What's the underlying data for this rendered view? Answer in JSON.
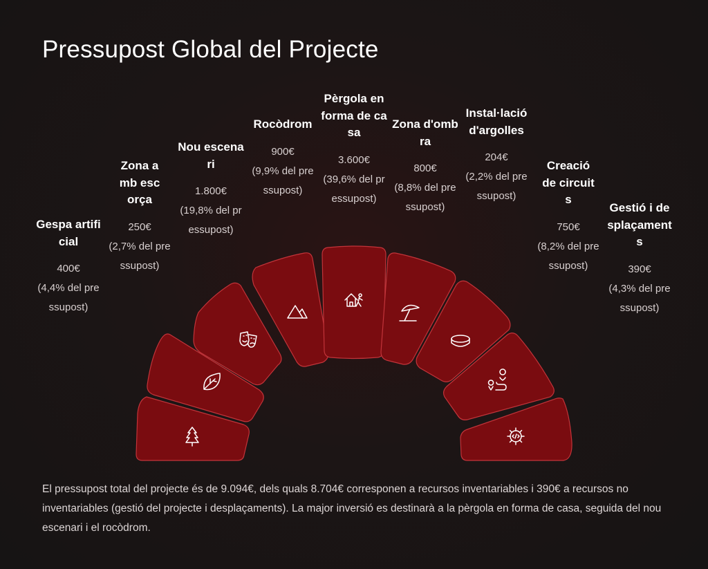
{
  "title": "Pressupost Global del Projecte",
  "colors": {
    "segment_fill": "#7a0c10",
    "segment_stroke": "#c2343a",
    "icon": "#ffffff"
  },
  "items": [
    {
      "name": "Gespa artificial",
      "amount": "400€",
      "pct": "(4,4% del pressupost)",
      "icon": "tree-icon",
      "value": 400,
      "percent": 4.4
    },
    {
      "name": "Zona amb escorça",
      "amount": "250€",
      "pct": "(2,7% del pressupost)",
      "icon": "leaf-icon",
      "value": 250,
      "percent": 2.7
    },
    {
      "name": "Nou escenari",
      "amount": "1.800€",
      "pct": "(19,8% del pressupost)",
      "icon": "theater-masks-icon",
      "value": 1800,
      "percent": 19.8
    },
    {
      "name": "Rocòdrom",
      "amount": "900€",
      "pct": "(9,9% del pressupost)",
      "icon": "mountain-icon",
      "value": 900,
      "percent": 9.9
    },
    {
      "name": "Pèrgola en forma de casa",
      "amount": "3.600€",
      "pct": "(39,6% del pressupost)",
      "icon": "house-person-icon",
      "value": 3600,
      "percent": 39.6
    },
    {
      "name": "Zona d'ombra",
      "amount": "800€",
      "pct": "(8,8% del pressupost)",
      "icon": "beach-umbrella-icon",
      "value": 800,
      "percent": 8.8
    },
    {
      "name": "Instal·lació d'argolles",
      "amount": "204€",
      "pct": "(2,2% del pressupost)",
      "icon": "ring-icon",
      "value": 204,
      "percent": 2.2
    },
    {
      "name": "Creació de circuits",
      "amount": "750€",
      "pct": "(8,2% del pressupost)",
      "icon": "route-icon",
      "value": 750,
      "percent": 8.2
    },
    {
      "name": "Gestió i desplaçaments",
      "amount": "390€",
      "pct": "(4,3% del pressupost)",
      "icon": "gear-code-icon",
      "value": 390,
      "percent": 4.3
    }
  ],
  "summary": "El pressupost total del projecte és de 9.094€, dels quals 8.704€ corresponen a recursos inventariables i 390€ a recursos no inventariables (gestió del projecte i desplaçaments). La major inversió es destinarà a la pèrgola en forma de casa, seguida del nou escenari i el rocòdrom."
}
